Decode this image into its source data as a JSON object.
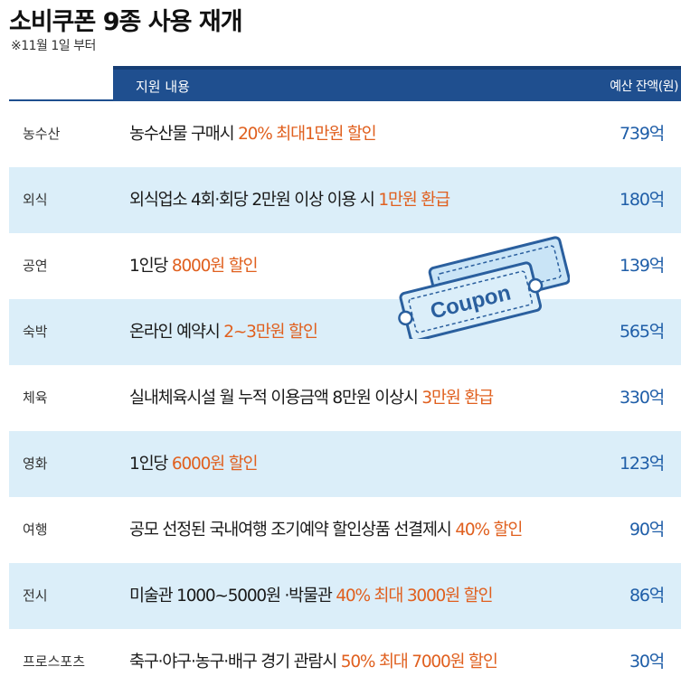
{
  "title": "소비쿠폰 9종 사용 재개",
  "note": "※11월 1일 부터",
  "header": {
    "content": "지원 내용",
    "budget": "예산 잔액(원)"
  },
  "coupon_word": "Coupon",
  "colors": {
    "header": "#1f4f8f",
    "shade": "#dbeef9",
    "highlight": "#e0601f",
    "amount": "#1f5ea8"
  },
  "rows": [
    {
      "category": "농수산",
      "desc": "농수산물 구매시 ",
      "highlight": "20% 최대1만원 할인",
      "amount": "739억"
    },
    {
      "category": "외식",
      "desc": "외식업소 4회·회당 2만원 이상 이용 시 ",
      "highlight": "1만원 환급",
      "amount": "180억"
    },
    {
      "category": "공연",
      "desc": "1인당 ",
      "highlight": "8000원 할인",
      "amount": "139억"
    },
    {
      "category": "숙박",
      "desc": "온라인 예약시 ",
      "highlight": "2~3만원 할인",
      "amount": "565억"
    },
    {
      "category": "체육",
      "desc": "실내체육시설 월 누적 이용금액 8만원 이상시 ",
      "highlight": "3만원 환급",
      "amount": "330억"
    },
    {
      "category": "영화",
      "desc": "1인당 ",
      "highlight": "6000원 할인",
      "amount": "123억"
    },
    {
      "category": "여행",
      "desc": "공모 선정된 국내여행 조기예약 할인상품 선결제시 ",
      "highlight": "40% 할인",
      "amount": "90억"
    },
    {
      "category": "전시",
      "desc": "미술관 1000~5000원 ·박물관 ",
      "highlight": "40% 최대 3000원 할인",
      "amount": "86억"
    },
    {
      "category": "프로스포츠",
      "desc": "축구·야구·농구·배구 경기 관람시 ",
      "highlight": "50% 최대 7000원 할인",
      "amount": "30억"
    }
  ]
}
